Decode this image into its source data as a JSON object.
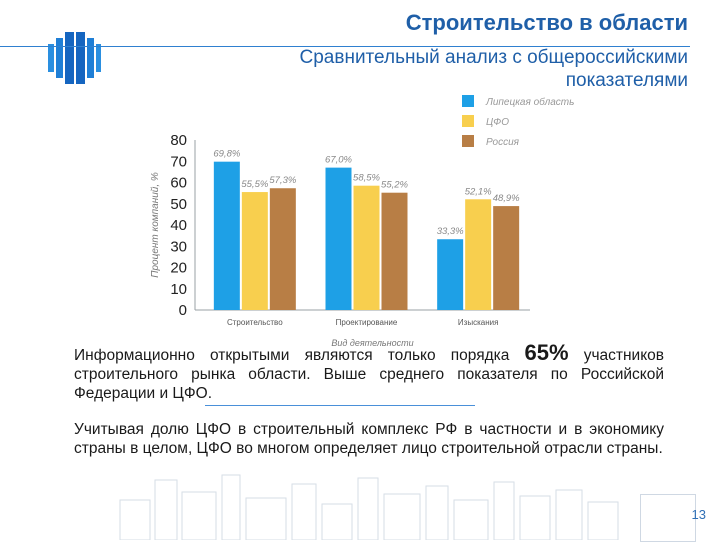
{
  "header": {
    "title": "Строительство в области",
    "subtitle": "Сравнительный анализ с общероссийскими показателями"
  },
  "colors": {
    "lipetsk": "#1ea0e6",
    "cfo": "#f8cf4e",
    "russia": "#b87e45",
    "accent": "#1f5fa8"
  },
  "chart_data": {
    "type": "bar",
    "categories": [
      "Строительство",
      "Проектирование",
      "Изыскания"
    ],
    "series": [
      {
        "name": "Липецкая область",
        "values": [
          69.8,
          67.0,
          33.3
        ],
        "labels": [
          "69,8%",
          "67,0%",
          "33,3%"
        ]
      },
      {
        "name": "ЦФО",
        "values": [
          55.5,
          58.5,
          52.1
        ],
        "labels": [
          "55,5%",
          "58,5%",
          "52,1%"
        ]
      },
      {
        "name": "Россия",
        "values": [
          57.3,
          55.2,
          48.9
        ],
        "labels": [
          "57,3%",
          "55,2%",
          "48,9%"
        ]
      }
    ],
    "ylim": [
      0,
      80
    ],
    "yticks": [
      "0",
      "10",
      "20",
      "30",
      "40",
      "50",
      "60",
      "70",
      "80"
    ],
    "ytick_values": [
      0,
      10,
      20,
      30,
      40,
      50,
      60,
      70,
      80
    ],
    "ylabel": "Процент компаний, %",
    "xlabel": "Вид деятельности",
    "legend_position": "top-right",
    "grid": false
  },
  "body": {
    "para1_before": "Информационно открытыми являются только порядка",
    "para1_percent": "65%",
    "para1_after": "участников строительного рынка области. Выше среднего показателя по Российской Федерации и ЦФО.",
    "para2": "Учитывая долю ЦФО в строительный комплекс РФ в частности и в экономику страны в целом, ЦФО во многом определяет лицо строительной отрасли страны."
  },
  "footer": {
    "page_number": "13"
  }
}
